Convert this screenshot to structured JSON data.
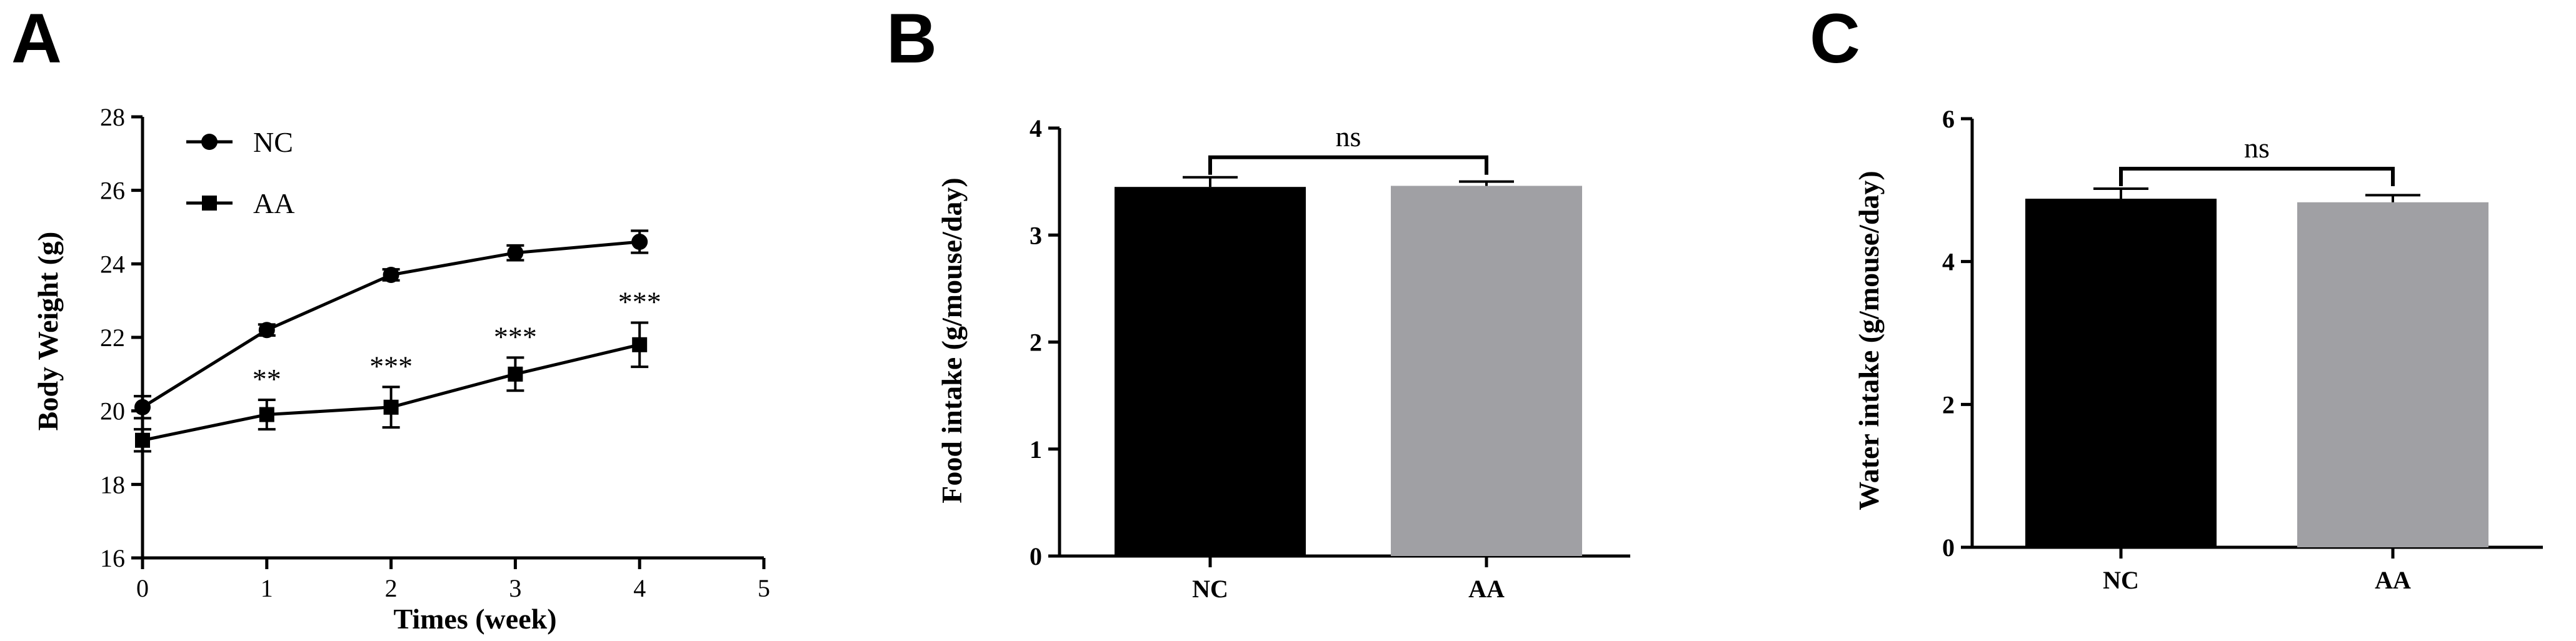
{
  "chart_data": [
    {
      "panel": "A",
      "type": "line",
      "xlabel": "Times (week)",
      "ylabel": "Body Weight (g)",
      "xlim": [
        0,
        5
      ],
      "ylim": [
        16,
        28
      ],
      "xticks": [
        "0",
        "1",
        "2",
        "3",
        "4",
        "5"
      ],
      "yticks": [
        "16",
        "18",
        "20",
        "22",
        "24",
        "26",
        "28"
      ],
      "legend": "top-left",
      "x": [
        0,
        1,
        2,
        3,
        4
      ],
      "series": [
        {
          "name": "NC",
          "marker": "circle",
          "values": [
            20.1,
            22.2,
            23.7,
            24.3,
            24.6
          ],
          "err": [
            0.3,
            0.15,
            0.15,
            0.2,
            0.3
          ]
        },
        {
          "name": "AA",
          "marker": "square",
          "values": [
            19.2,
            19.9,
            20.1,
            21.0,
            21.8
          ],
          "err": [
            0.3,
            0.4,
            0.55,
            0.45,
            0.6
          ]
        }
      ],
      "annotations": [
        {
          "x": 1,
          "text": "**"
        },
        {
          "x": 2,
          "text": "***"
        },
        {
          "x": 3,
          "text": "***"
        },
        {
          "x": 4,
          "text": "***"
        }
      ]
    },
    {
      "panel": "B",
      "type": "bar",
      "categories": [
        "NC",
        "AA"
      ],
      "values": [
        3.45,
        3.46
      ],
      "err": [
        0.09,
        0.04
      ],
      "colors": [
        "#000000",
        "#a0a0a4"
      ],
      "xlabel": "",
      "ylabel": "Food intake (g/mouse/day)",
      "ylim": [
        0,
        4
      ],
      "yticks": [
        "0",
        "1",
        "2",
        "3",
        "4"
      ],
      "significance": "ns"
    },
    {
      "panel": "C",
      "type": "bar",
      "categories": [
        "NC",
        "AA"
      ],
      "values": [
        4.88,
        4.83
      ],
      "err": [
        0.14,
        0.1
      ],
      "colors": [
        "#000000",
        "#a0a0a4"
      ],
      "xlabel": "",
      "ylabel": "Water intake (g/mouse/day)",
      "ylim": [
        0,
        6
      ],
      "yticks": [
        "0",
        "2",
        "4",
        "6"
      ],
      "significance": "ns"
    }
  ]
}
